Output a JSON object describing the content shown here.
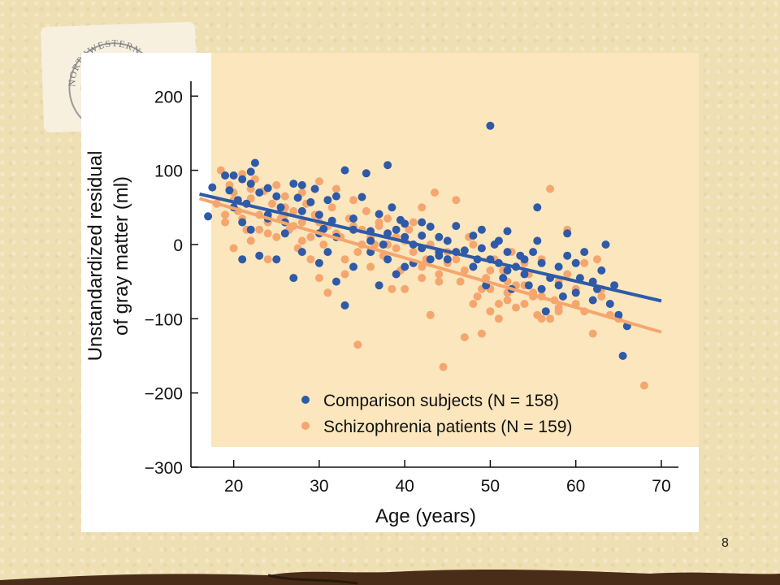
{
  "slide": {
    "number": "8"
  },
  "seal": {
    "text": "NORTHWESTERN UNIVERSITY"
  },
  "colors": {
    "slide_background": "#efe0b4",
    "plot_background": "#fbe6bd",
    "comparison": "#2e5aa8",
    "schizophrenia": "#f5a66e"
  },
  "chart_data": {
    "type": "scatter",
    "xlabel": "Age (years)",
    "ylabel": "Unstandardized residual of gray matter (ml)",
    "ylabel_lines": [
      "Unstandardized residual",
      "of gray matter (ml)"
    ],
    "xlim": [
      15,
      72
    ],
    "ylim": [
      -300,
      220
    ],
    "x_ticks": [
      20,
      30,
      40,
      50,
      60,
      70
    ],
    "y_ticks": [
      200,
      100,
      0,
      -100,
      -200,
      -300
    ],
    "x_tick_labels": [
      "20",
      "30",
      "40",
      "50",
      "60",
      "70"
    ],
    "y_tick_labels": [
      "200",
      "100",
      "0",
      "−100",
      "−200",
      "−300"
    ],
    "grid": false,
    "legend_placement": "bottom-right",
    "series": [
      {
        "name": "Comparison subjects (N = 158)",
        "color": "#2e5aa8",
        "fit_line": {
          "x": [
            16,
            70
          ],
          "y": [
            68,
            -76
          ]
        },
        "points": [
          [
            17,
            38
          ],
          [
            17.5,
            77
          ],
          [
            19,
            93
          ],
          [
            19.5,
            73
          ],
          [
            20,
            93
          ],
          [
            20.5,
            60
          ],
          [
            21,
            88
          ],
          [
            21,
            30
          ],
          [
            21.5,
            55
          ],
          [
            22,
            82
          ],
          [
            22,
            98
          ],
          [
            22.5,
            110
          ],
          [
            23,
            70
          ],
          [
            24,
            35
          ],
          [
            24,
            76
          ],
          [
            25,
            65
          ],
          [
            25.5,
            50
          ],
          [
            26,
            30
          ],
          [
            27,
            82
          ],
          [
            27.5,
            63
          ],
          [
            28,
            80
          ],
          [
            29,
            57
          ],
          [
            29.5,
            75
          ],
          [
            30,
            40
          ],
          [
            30.5,
            21
          ],
          [
            31,
            60
          ],
          [
            31.5,
            32
          ],
          [
            32,
            65
          ],
          [
            33,
            100
          ],
          [
            34,
            35
          ],
          [
            35,
            64
          ],
          [
            35.5,
            96
          ],
          [
            36,
            18
          ],
          [
            37,
            41
          ],
          [
            37.5,
            0
          ],
          [
            38,
            107
          ],
          [
            38.5,
            50
          ],
          [
            39,
            20
          ],
          [
            39.5,
            33
          ],
          [
            40,
            28
          ],
          [
            41,
            0
          ],
          [
            42,
            12
          ],
          [
            43,
            24
          ],
          [
            44,
            10
          ],
          [
            21,
            -20
          ],
          [
            23,
            -15
          ],
          [
            25,
            -20
          ],
          [
            27,
            -45
          ],
          [
            28,
            -10
          ],
          [
            30,
            -25
          ],
          [
            31,
            -10
          ],
          [
            32,
            -50
          ],
          [
            33,
            -82
          ],
          [
            34,
            -30
          ],
          [
            36,
            -10
          ],
          [
            37,
            -55
          ],
          [
            38,
            -20
          ],
          [
            39,
            -40
          ],
          [
            40,
            -30
          ],
          [
            41,
            -25
          ],
          [
            42,
            -5
          ],
          [
            43,
            -20
          ],
          [
            44,
            -10
          ],
          [
            45,
            -20
          ],
          [
            46,
            25
          ],
          [
            47,
            -8
          ],
          [
            48,
            12
          ],
          [
            48.5,
            -20
          ],
          [
            49,
            -5
          ],
          [
            49.5,
            -55
          ],
          [
            50,
            160
          ],
          [
            50.5,
            0
          ],
          [
            51,
            5
          ],
          [
            51,
            -25
          ],
          [
            51.5,
            -45
          ],
          [
            52,
            18
          ],
          [
            52,
            -10
          ],
          [
            52.5,
            -60
          ],
          [
            53,
            -30
          ],
          [
            53.5,
            -15
          ],
          [
            54,
            -40
          ],
          [
            54.5,
            -55
          ],
          [
            55,
            -10
          ],
          [
            55.5,
            5
          ],
          [
            56,
            -25
          ],
          [
            56.5,
            -90
          ],
          [
            57,
            -45
          ],
          [
            58,
            -30
          ],
          [
            58.5,
            -70
          ],
          [
            59,
            -15
          ],
          [
            60,
            -25
          ],
          [
            60.5,
            -45
          ],
          [
            61,
            -10
          ],
          [
            62,
            -50
          ],
          [
            62.5,
            -60
          ],
          [
            63,
            -35
          ],
          [
            63.5,
            0
          ],
          [
            64,
            -80
          ],
          [
            64.5,
            -55
          ],
          [
            65,
            -95
          ],
          [
            65.5,
            -150
          ],
          [
            66,
            -110
          ],
          [
            20,
            50
          ],
          [
            22,
            20
          ],
          [
            24,
            40
          ],
          [
            26,
            15
          ],
          [
            28,
            45
          ],
          [
            30,
            15
          ],
          [
            32,
            10
          ],
          [
            34,
            20
          ],
          [
            36,
            5
          ],
          [
            38,
            15
          ],
          [
            40,
            10
          ],
          [
            42,
            30
          ],
          [
            44,
            -15
          ],
          [
            46,
            -10
          ],
          [
            48,
            -30
          ],
          [
            50,
            -20
          ],
          [
            52,
            -35
          ],
          [
            54,
            -20
          ],
          [
            56,
            -60
          ],
          [
            58,
            -55
          ],
          [
            60,
            -65
          ],
          [
            62,
            -75
          ],
          [
            55.5,
            50
          ],
          [
            59,
            15
          ],
          [
            49,
            20
          ],
          [
            45,
            5
          ]
        ]
      },
      {
        "name": "Schizophrenia patients (N = 159)",
        "color": "#f5a66e",
        "fit_line": {
          "x": [
            16,
            70
          ],
          "y": [
            62,
            -118
          ]
        },
        "points": [
          [
            18,
            55
          ],
          [
            18.5,
            100
          ],
          [
            19,
            30
          ],
          [
            19.5,
            80
          ],
          [
            20,
            70
          ],
          [
            20,
            -5
          ],
          [
            20.5,
            45
          ],
          [
            21,
            95
          ],
          [
            21.5,
            20
          ],
          [
            22,
            62
          ],
          [
            22.5,
            88
          ],
          [
            23,
            40
          ],
          [
            23.5,
            72
          ],
          [
            24,
            15
          ],
          [
            24.5,
            55
          ],
          [
            25,
            80
          ],
          [
            25.5,
            35
          ],
          [
            26,
            65
          ],
          [
            26.5,
            20
          ],
          [
            27,
            45
          ],
          [
            27.5,
            -5
          ],
          [
            28,
            30
          ],
          [
            28.5,
            55
          ],
          [
            29,
            10
          ],
          [
            29.5,
            40
          ],
          [
            30,
            85
          ],
          [
            30.5,
            0
          ],
          [
            31,
            25
          ],
          [
            31.5,
            50
          ],
          [
            32,
            75
          ],
          [
            32.5,
            10
          ],
          [
            33,
            -20
          ],
          [
            33.5,
            35
          ],
          [
            34,
            60
          ],
          [
            34.5,
            -10
          ],
          [
            35,
            20
          ],
          [
            35.5,
            45
          ],
          [
            36,
            -30
          ],
          [
            36.5,
            0
          ],
          [
            37,
            25
          ],
          [
            37.5,
            -15
          ],
          [
            38,
            35
          ],
          [
            38.5,
            -60
          ],
          [
            39,
            10
          ],
          [
            39.5,
            -35
          ],
          [
            40,
            -60
          ],
          [
            40.5,
            20
          ],
          [
            41,
            -10
          ],
          [
            42,
            50
          ],
          [
            42.5,
            -20
          ],
          [
            43,
            -95
          ],
          [
            43.5,
            70
          ],
          [
            44,
            -40
          ],
          [
            44.5,
            -165
          ],
          [
            45,
            -25
          ],
          [
            46,
            60
          ],
          [
            46.5,
            -50
          ],
          [
            47,
            -125
          ],
          [
            47.5,
            10
          ],
          [
            48,
            -30
          ],
          [
            48.5,
            -70
          ],
          [
            49,
            -120
          ],
          [
            49.5,
            -45
          ],
          [
            50,
            -60
          ],
          [
            50.5,
            -20
          ],
          [
            51,
            -100
          ],
          [
            51.5,
            -35
          ],
          [
            52,
            -75
          ],
          [
            52.5,
            -10
          ],
          [
            53,
            -55
          ],
          [
            54,
            -80
          ],
          [
            54.5,
            -40
          ],
          [
            55,
            -65
          ],
          [
            55.5,
            -95
          ],
          [
            56,
            -20
          ],
          [
            57,
            75
          ],
          [
            57.5,
            -75
          ],
          [
            58,
            -90
          ],
          [
            59,
            20
          ],
          [
            60,
            -60
          ],
          [
            61,
            -25
          ],
          [
            62,
            -120
          ],
          [
            62.5,
            -20
          ],
          [
            63,
            -70
          ],
          [
            64,
            -95
          ],
          [
            65,
            -100
          ],
          [
            68,
            -190
          ],
          [
            34.5,
            -135
          ],
          [
            33,
            -40
          ],
          [
            30,
            -45
          ],
          [
            31,
            -65
          ],
          [
            27,
            25
          ],
          [
            28,
            5
          ],
          [
            25,
            10
          ],
          [
            26,
            50
          ],
          [
            22,
            5
          ],
          [
            23,
            20
          ],
          [
            24,
            -20
          ],
          [
            19,
            40
          ],
          [
            21,
            35
          ],
          [
            29,
            -20
          ],
          [
            35,
            0
          ],
          [
            37,
            30
          ],
          [
            39,
            -5
          ],
          [
            41,
            30
          ],
          [
            42,
            -45
          ],
          [
            43,
            0
          ],
          [
            45,
            -10
          ],
          [
            47,
            -35
          ],
          [
            48,
            0
          ],
          [
            49,
            -60
          ],
          [
            50,
            -35
          ],
          [
            51,
            -80
          ],
          [
            52,
            -50
          ],
          [
            53,
            -85
          ],
          [
            54,
            -25
          ],
          [
            55,
            -70
          ],
          [
            56,
            -100
          ],
          [
            58,
            -50
          ],
          [
            59,
            -40
          ],
          [
            60,
            -80
          ],
          [
            20,
            60
          ],
          [
            22,
            75
          ],
          [
            24,
            30
          ],
          [
            26,
            40
          ],
          [
            28,
            70
          ],
          [
            30,
            30
          ],
          [
            32,
            15
          ],
          [
            34,
            25
          ],
          [
            36,
            10
          ],
          [
            38,
            0
          ],
          [
            40,
            5
          ],
          [
            42,
            -30
          ],
          [
            44,
            -50
          ],
          [
            46,
            -20
          ],
          [
            48,
            -80
          ],
          [
            50,
            -90
          ],
          [
            52,
            -65
          ],
          [
            54,
            -55
          ],
          [
            56,
            -70
          ],
          [
            58,
            -85
          ],
          [
            61,
            -90
          ],
          [
            63,
            -60
          ],
          [
            57,
            -100
          ]
        ]
      }
    ]
  }
}
